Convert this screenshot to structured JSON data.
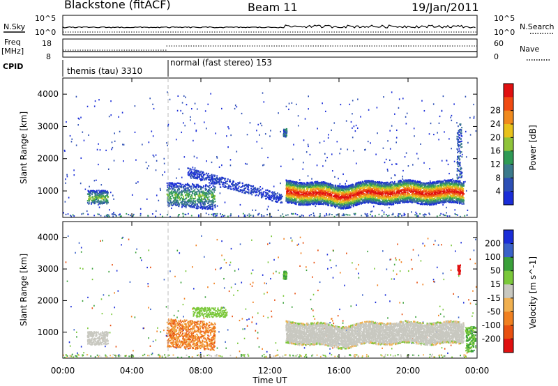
{
  "header": {
    "station": "Blackstone (fitACF)",
    "beam": "Beam 11",
    "date": "19/Jan/2011"
  },
  "strip_labels": {
    "nsky": "N.Sky",
    "nsearch": "N.Search",
    "freq_top": "Freq",
    "freq_unit": "[MHz]",
    "nave": "Nave",
    "cpid": "CPID"
  },
  "strip_ticks": {
    "nsky_left": [
      "10^5",
      "10^0"
    ],
    "nsky_right": [
      "10^5",
      "10^0"
    ],
    "freq_left": [
      "18",
      "8"
    ],
    "nave_right": [
      "60",
      "0"
    ]
  },
  "cpid_segments": [
    {
      "label": "themis (tau) 3310",
      "start_h": 0,
      "end_h": 6
    },
    {
      "label": "normal (fast stereo) 153",
      "start_h": 6,
      "end_h": 24
    }
  ],
  "colors": {
    "power": [
      "#1a2dd8",
      "#2d4fb5",
      "#3b7a8c",
      "#2f9a55",
      "#8fc43a",
      "#e8c21c",
      "#f08a1e",
      "#f04a12",
      "#e01010"
    ],
    "velocity": [
      "#1a2dd8",
      "#3a62c8",
      "#3aa03a",
      "#7ac83a",
      "#c8c8c0",
      "#f0b050",
      "#f08020",
      "#e85010",
      "#e01010"
    ]
  },
  "chart_data": [
    {
      "type": "heatmap",
      "title": "Power",
      "xlabel": "",
      "ylabel": "Slant Range [km]",
      "xlim": [
        0,
        24
      ],
      "ylim": [
        180,
        4500
      ],
      "x_ticks": [
        "00:00",
        "04:00",
        "08:00",
        "12:00",
        "16:00",
        "20:00",
        "00:00"
      ],
      "y_ticks": [
        1000,
        2000,
        3000,
        4000
      ],
      "colorbar_label": "Power [dB]",
      "colorbar_ticks": [
        "4",
        "8",
        "12",
        "16",
        "20",
        "24",
        "28"
      ],
      "features": [
        {
          "x": [
            1.5,
            2.5
          ],
          "y_center": 800,
          "peak": "green"
        },
        {
          "x": [
            6.0,
            8.5
          ],
          "y_center": 850,
          "peak": "green"
        },
        {
          "x": [
            12.9,
            23.2
          ],
          "y_center": 1000,
          "peak": "red"
        }
      ]
    },
    {
      "type": "heatmap",
      "title": "Velocity",
      "xlabel": "Time UT",
      "ylabel": "Slant Range [km]",
      "xlim": [
        0,
        24
      ],
      "ylim": [
        180,
        4500
      ],
      "x_ticks": [
        "00:00",
        "04:00",
        "08:00",
        "12:00",
        "16:00",
        "20:00",
        "00:00"
      ],
      "y_ticks": [
        1000,
        2000,
        3000,
        4000
      ],
      "colorbar_label": "Velocity [m s^-1]",
      "colorbar_ticks": [
        "200",
        "100",
        "50",
        "15",
        "-15",
        "-50",
        "-100",
        "-200"
      ],
      "features": [
        {
          "x": [
            1.5,
            2.5
          ],
          "y_center": 800,
          "class": "ground scatter"
        },
        {
          "x": [
            6.0,
            8.5
          ],
          "y_center": 850,
          "class": "orange"
        },
        {
          "x": [
            12.9,
            23.2
          ],
          "y_center": 1000,
          "class": "ground scatter"
        }
      ]
    }
  ],
  "xlabel": "Time UT"
}
